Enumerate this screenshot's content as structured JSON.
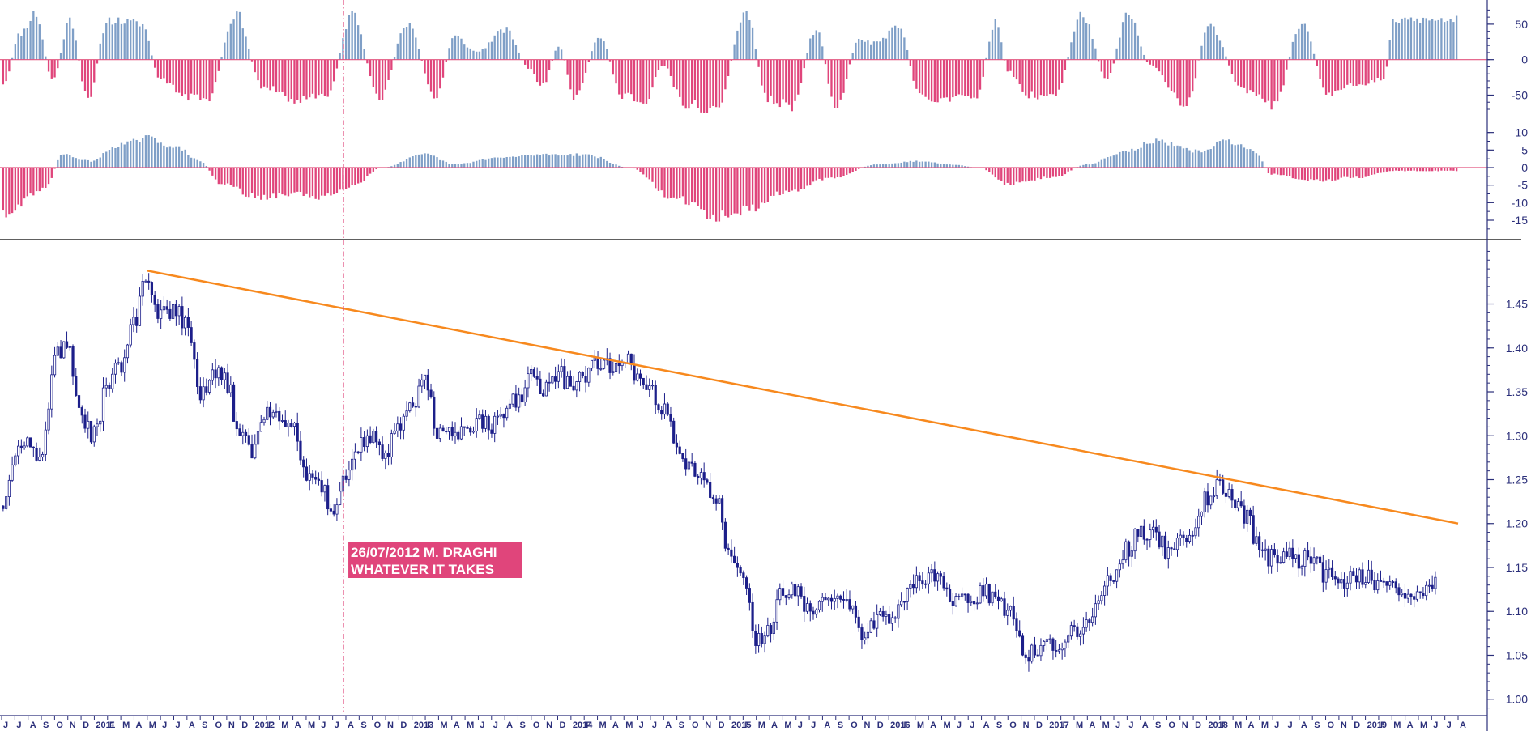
{
  "colors": {
    "background": "#ffffff",
    "candle": "#1c1f8a",
    "positive_bar": "#7f9fc7",
    "negative_bar": "#e0457b",
    "trendline": "#f7891e",
    "zero_line": "#e2557f",
    "divider": "#000000",
    "axis": "#2b2f7a",
    "event_line": "#e0457b",
    "annotation_bg": "#e0457b",
    "annotation_text": "#ffffff"
  },
  "chart_data": [
    {
      "type": "bar",
      "panel": "oscillator-1",
      "ylim": [
        -70,
        75
      ],
      "y_ticks": [
        "50",
        "0",
        "-50"
      ],
      "y_tick_values": [
        50,
        0,
        -50
      ],
      "waves": [
        [
          0.0,
          -40
        ],
        [
          0.012,
          40
        ],
        [
          0.022,
          70
        ],
        [
          0.034,
          -30
        ],
        [
          0.046,
          60
        ],
        [
          0.058,
          -60
        ],
        [
          0.072,
          60
        ],
        [
          0.095,
          55
        ],
        [
          0.108,
          -30
        ],
        [
          0.125,
          -55
        ],
        [
          0.14,
          -62
        ],
        [
          0.16,
          70
        ],
        [
          0.178,
          -40
        ],
        [
          0.2,
          -60
        ],
        [
          0.222,
          -55
        ],
        [
          0.24,
          70
        ],
        [
          0.258,
          -60
        ],
        [
          0.278,
          55
        ],
        [
          0.297,
          -58
        ],
        [
          0.31,
          35
        ],
        [
          0.325,
          12
        ],
        [
          0.345,
          45
        ],
        [
          0.362,
          -15
        ],
        [
          0.37,
          -40
        ],
        [
          0.382,
          20
        ],
        [
          0.392,
          -60
        ],
        [
          0.41,
          35
        ],
        [
          0.425,
          -55
        ],
        [
          0.44,
          -65
        ],
        [
          0.453,
          -8
        ],
        [
          0.468,
          -68
        ],
        [
          0.49,
          -75
        ],
        [
          0.51,
          72
        ],
        [
          0.525,
          -60
        ],
        [
          0.542,
          -70
        ],
        [
          0.558,
          45
        ],
        [
          0.572,
          -70
        ],
        [
          0.588,
          30
        ],
        [
          0.598,
          25
        ],
        [
          0.615,
          48
        ],
        [
          0.63,
          -58
        ],
        [
          0.65,
          -60
        ],
        [
          0.668,
          -55
        ],
        [
          0.682,
          60
        ],
        [
          0.69,
          -18
        ],
        [
          0.705,
          -55
        ],
        [
          0.722,
          -55
        ],
        [
          0.741,
          68
        ],
        [
          0.758,
          -28
        ],
        [
          0.772,
          68
        ],
        [
          0.788,
          -8
        ],
        [
          0.812,
          -72
        ],
        [
          0.828,
          50
        ],
        [
          0.852,
          -45
        ],
        [
          0.872,
          -72
        ],
        [
          0.892,
          55
        ],
        [
          0.91,
          -55
        ],
        [
          0.93,
          -38
        ],
        [
          0.948,
          -28
        ],
        [
          0.955,
          60
        ]
      ]
    },
    {
      "type": "bar",
      "panel": "oscillator-2",
      "ylim": [
        -18,
        12
      ],
      "y_ticks": [
        "10",
        "5",
        "0",
        "-5",
        "-10",
        "-15"
      ],
      "y_tick_values": [
        10,
        5,
        0,
        -5,
        -10,
        -15
      ],
      "waves": [
        [
          0.0,
          -14
        ],
        [
          0.03,
          -6
        ],
        [
          0.04,
          4
        ],
        [
          0.06,
          2
        ],
        [
          0.08,
          7
        ],
        [
          0.1,
          9
        ],
        [
          0.12,
          6
        ],
        [
          0.135,
          2
        ],
        [
          0.15,
          -5
        ],
        [
          0.175,
          -9
        ],
        [
          0.2,
          -8
        ],
        [
          0.22,
          -9
        ],
        [
          0.24,
          -6
        ],
        [
          0.26,
          0
        ],
        [
          0.29,
          4
        ],
        [
          0.31,
          1
        ],
        [
          0.34,
          3
        ],
        [
          0.37,
          4
        ],
        [
          0.4,
          4
        ],
        [
          0.43,
          0
        ],
        [
          0.46,
          -9
        ],
        [
          0.49,
          -15
        ],
        [
          0.51,
          -13
        ],
        [
          0.54,
          -7
        ],
        [
          0.57,
          -3
        ],
        [
          0.6,
          1
        ],
        [
          0.63,
          2
        ],
        [
          0.65,
          1
        ],
        [
          0.67,
          0
        ],
        [
          0.69,
          -5
        ],
        [
          0.72,
          -3
        ],
        [
          0.745,
          1
        ],
        [
          0.77,
          5
        ],
        [
          0.79,
          8
        ],
        [
          0.82,
          5
        ],
        [
          0.84,
          8
        ],
        [
          0.86,
          5
        ],
        [
          0.87,
          -2
        ],
        [
          0.9,
          -4
        ],
        [
          0.93,
          -3
        ],
        [
          0.955,
          -1
        ]
      ]
    },
    {
      "type": "candlestick",
      "panel": "price",
      "ylim": [
        0.985,
        1.515
      ],
      "y_ticks": [
        "1.45",
        "1.40",
        "1.35",
        "1.30",
        "1.25",
        "1.20",
        "1.15",
        "1.10",
        "1.05",
        "1.00"
      ],
      "y_tick_values": [
        1.45,
        1.4,
        1.35,
        1.3,
        1.25,
        1.2,
        1.15,
        1.1,
        1.05,
        1.0
      ],
      "x_start": "2010-06",
      "x_end": "2019-08",
      "x_tick_labels": [
        "J",
        "J",
        "A",
        "S",
        "O",
        "N",
        "D",
        "2011",
        "F",
        "M",
        "A",
        "M",
        "J",
        "J",
        "A",
        "S",
        "O",
        "N",
        "D",
        "2012",
        "F",
        "M",
        "A",
        "M",
        "J",
        "J",
        "A",
        "S",
        "O",
        "N",
        "D",
        "2013",
        "F",
        "M",
        "A",
        "M",
        "J",
        "J",
        "A",
        "S",
        "O",
        "N",
        "D",
        "2014",
        "F",
        "M",
        "A",
        "M",
        "J",
        "J",
        "A",
        "S",
        "O",
        "N",
        "D",
        "2015",
        "F",
        "M",
        "A",
        "M",
        "J",
        "J",
        "A",
        "S",
        "O",
        "N",
        "D",
        "2016",
        "F",
        "M",
        "A",
        "M",
        "J",
        "J",
        "A",
        "S",
        "O",
        "N",
        "D",
        "2017",
        "F",
        "M",
        "A",
        "M",
        "J",
        "J",
        "A",
        "S",
        "O",
        "N",
        "D",
        "2018",
        "F",
        "M",
        "A",
        "M",
        "J",
        "J",
        "A",
        "S",
        "O",
        "N",
        "D",
        "2019",
        "F",
        "M",
        "A",
        "M",
        "J",
        "J",
        "A"
      ],
      "x_tick_dates": [
        "2010-06",
        "2010-07",
        "2010-08",
        "2010-09",
        "2010-10",
        "2010-11",
        "2010-12",
        "2011-01",
        "2011-02",
        "2011-03",
        "2011-04",
        "2011-05",
        "2011-06",
        "2011-07",
        "2011-08",
        "2011-09",
        "2011-10",
        "2011-11",
        "2011-12",
        "2012-01",
        "2012-02",
        "2012-03",
        "2012-04",
        "2012-05",
        "2012-06",
        "2012-07",
        "2012-08",
        "2012-09",
        "2012-10",
        "2012-11",
        "2012-12",
        "2013-01",
        "2013-02",
        "2013-03",
        "2013-04",
        "2013-05",
        "2013-06",
        "2013-07",
        "2013-08",
        "2013-09",
        "2013-10",
        "2013-11",
        "2013-12",
        "2014-01",
        "2014-02",
        "2014-03",
        "2014-04",
        "2014-05",
        "2014-06",
        "2014-07",
        "2014-08",
        "2014-09",
        "2014-10",
        "2014-11",
        "2014-12",
        "2015-01",
        "2015-02",
        "2015-03",
        "2015-04",
        "2015-05",
        "2015-06",
        "2015-07",
        "2015-08",
        "2015-09",
        "2015-10",
        "2015-11",
        "2015-12",
        "2016-01",
        "2016-02",
        "2016-03",
        "2016-04",
        "2016-05",
        "2016-06",
        "2016-07",
        "2016-08",
        "2016-09",
        "2016-10",
        "2016-11",
        "2016-12",
        "2017-01",
        "2017-02",
        "2017-03",
        "2017-04",
        "2017-05",
        "2017-06",
        "2017-07",
        "2017-08",
        "2017-09",
        "2017-10",
        "2017-11",
        "2017-12",
        "2018-01",
        "2018-02",
        "2018-03",
        "2018-04",
        "2018-05",
        "2018-06",
        "2018-07",
        "2018-08",
        "2018-09",
        "2018-10",
        "2018-11",
        "2018-12",
        "2019-01",
        "2019-02",
        "2019-03",
        "2019-04",
        "2019-05",
        "2019-06",
        "2019-07",
        "2019-08"
      ],
      "keypoints": [
        [
          "2010-06",
          1.22
        ],
        [
          "2010-07",
          1.28
        ],
        [
          "2010-08",
          1.3
        ],
        [
          "2010-09",
          1.27
        ],
        [
          "2010-10",
          1.39
        ],
        [
          "2010-11",
          1.4
        ],
        [
          "2010-12",
          1.32
        ],
        [
          "2011-01",
          1.3
        ],
        [
          "2011-02",
          1.36
        ],
        [
          "2011-03",
          1.38
        ],
        [
          "2011-04",
          1.43
        ],
        [
          "2011-05",
          1.48
        ],
        [
          "2011-06",
          1.44
        ],
        [
          "2011-07",
          1.44
        ],
        [
          "2011-08",
          1.43
        ],
        [
          "2011-09",
          1.35
        ],
        [
          "2011-10",
          1.37
        ],
        [
          "2011-11",
          1.36
        ],
        [
          "2011-12",
          1.3
        ],
        [
          "2012-01",
          1.28
        ],
        [
          "2012-02",
          1.33
        ],
        [
          "2012-03",
          1.32
        ],
        [
          "2012-04",
          1.31
        ],
        [
          "2012-05",
          1.26
        ],
        [
          "2012-06",
          1.24
        ],
        [
          "2012-07",
          1.22
        ],
        [
          "2012-08",
          1.25
        ],
        [
          "2012-09",
          1.29
        ],
        [
          "2012-10",
          1.3
        ],
        [
          "2012-11",
          1.28
        ],
        [
          "2012-12",
          1.31
        ],
        [
          "2013-01",
          1.33
        ],
        [
          "2013-02",
          1.36
        ],
        [
          "2013-03",
          1.3
        ],
        [
          "2013-04",
          1.3
        ],
        [
          "2013-05",
          1.3
        ],
        [
          "2013-06",
          1.32
        ],
        [
          "2013-07",
          1.31
        ],
        [
          "2013-08",
          1.33
        ],
        [
          "2013-09",
          1.34
        ],
        [
          "2013-10",
          1.37
        ],
        [
          "2013-11",
          1.35
        ],
        [
          "2013-12",
          1.37
        ],
        [
          "2014-01",
          1.36
        ],
        [
          "2014-02",
          1.37
        ],
        [
          "2014-03",
          1.38
        ],
        [
          "2014-04",
          1.38
        ],
        [
          "2014-05",
          1.39
        ],
        [
          "2014-06",
          1.36
        ],
        [
          "2014-07",
          1.35
        ],
        [
          "2014-08",
          1.33
        ],
        [
          "2014-09",
          1.29
        ],
        [
          "2014-10",
          1.26
        ],
        [
          "2014-11",
          1.25
        ],
        [
          "2014-12",
          1.23
        ],
        [
          "2015-01",
          1.16
        ],
        [
          "2015-02",
          1.13
        ],
        [
          "2015-03",
          1.07
        ],
        [
          "2015-04",
          1.08
        ],
        [
          "2015-05",
          1.12
        ],
        [
          "2015-06",
          1.12
        ],
        [
          "2015-07",
          1.1
        ],
        [
          "2015-08",
          1.12
        ],
        [
          "2015-09",
          1.12
        ],
        [
          "2015-10",
          1.11
        ],
        [
          "2015-11",
          1.07
        ],
        [
          "2015-12",
          1.09
        ],
        [
          "2016-01",
          1.09
        ],
        [
          "2016-02",
          1.11
        ],
        [
          "2016-03",
          1.13
        ],
        [
          "2016-04",
          1.14
        ],
        [
          "2016-05",
          1.13
        ],
        [
          "2016-06",
          1.11
        ],
        [
          "2016-07",
          1.11
        ],
        [
          "2016-08",
          1.12
        ],
        [
          "2016-09",
          1.12
        ],
        [
          "2016-10",
          1.1
        ],
        [
          "2016-11",
          1.06
        ],
        [
          "2016-12",
          1.05
        ],
        [
          "2017-01",
          1.07
        ],
        [
          "2017-02",
          1.06
        ],
        [
          "2017-03",
          1.08
        ],
        [
          "2017-04",
          1.09
        ],
        [
          "2017-05",
          1.12
        ],
        [
          "2017-06",
          1.14
        ],
        [
          "2017-07",
          1.17
        ],
        [
          "2017-08",
          1.19
        ],
        [
          "2017-09",
          1.19
        ],
        [
          "2017-10",
          1.17
        ],
        [
          "2017-11",
          1.18
        ],
        [
          "2017-12",
          1.19
        ],
        [
          "2018-01",
          1.23
        ],
        [
          "2018-02",
          1.24
        ],
        [
          "2018-03",
          1.23
        ],
        [
          "2018-04",
          1.21
        ],
        [
          "2018-05",
          1.17
        ],
        [
          "2018-06",
          1.16
        ],
        [
          "2018-07",
          1.17
        ],
        [
          "2018-08",
          1.16
        ],
        [
          "2018-09",
          1.16
        ],
        [
          "2018-10",
          1.14
        ],
        [
          "2018-11",
          1.13
        ],
        [
          "2018-12",
          1.14
        ],
        [
          "2019-01",
          1.14
        ],
        [
          "2019-02",
          1.13
        ],
        [
          "2019-03",
          1.13
        ],
        [
          "2019-04",
          1.12
        ],
        [
          "2019-05",
          1.12
        ],
        [
          "2019-06",
          1.13
        ]
      ],
      "trendline": {
        "start": [
          "2011-05",
          1.488
        ],
        "end": [
          "2019-08",
          1.2
        ]
      },
      "event_marker": {
        "date": "2012-07-26"
      },
      "annotation": {
        "line1": "26/07/2012 M. DRAGHI",
        "line2": "WHATEVER IT TAKES"
      }
    }
  ]
}
